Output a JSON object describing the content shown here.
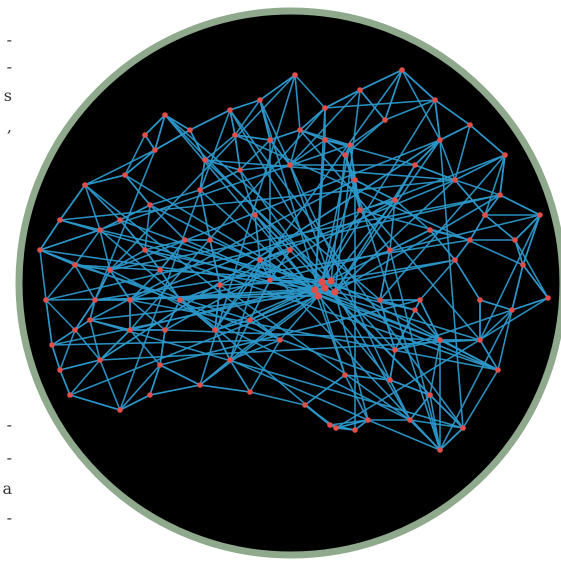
{
  "margin_fragments": {
    "top": [
      "-",
      "-",
      "s",
      ","
    ],
    "bottom": [
      "-",
      "-",
      "a",
      "-"
    ]
  },
  "colors": {
    "page_background": "#ffffff",
    "disc_fill": "#000000",
    "disc_border": "#8fa98d",
    "edge_color": "#2b97c9",
    "node_color": "#e24e4a"
  },
  "figure": {
    "type": "network-graph",
    "hub_node": "hub",
    "description_visible_text": ""
  }
}
